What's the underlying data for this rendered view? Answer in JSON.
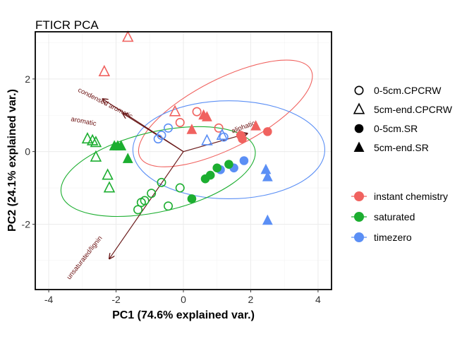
{
  "chart_data": {
    "type": "scatter",
    "title": "FTICR PCA",
    "xlabel": "PC1 (74.6% explained var.)",
    "ylabel": "PC2 (24.1% explained var.)",
    "xlim": [
      -4.4,
      4.4
    ],
    "ylim": [
      -3.8,
      3.3
    ],
    "xticks": [
      -4,
      -2,
      0,
      2,
      4
    ],
    "xtick_labels": [
      "-4",
      "-2",
      "0",
      "2",
      "4"
    ],
    "yticks": [
      -2,
      0,
      2
    ],
    "ytick_labels": [
      "-2",
      "0",
      "2"
    ],
    "grid": true,
    "legend_position": "right",
    "colors": {
      "instant chemistry": "#f0625f",
      "saturated": "#1cae30",
      "timezero": "#5b8ff5",
      "loadings": "#6a1a1a",
      "grid": "#ebebeb"
    },
    "shape_legend": [
      {
        "label": "0-5cm.CPCRW",
        "shape": "circle-open"
      },
      {
        "label": "5cm-end.CPCRW",
        "shape": "triangle-open"
      },
      {
        "label": "0-5cm.SR",
        "shape": "circle-filled"
      },
      {
        "label": "5cm-end.SR",
        "shape": "triangle-filled"
      }
    ],
    "color_legend": [
      {
        "label": "instant chemistry",
        "color": "#f0625f"
      },
      {
        "label": "saturated",
        "color": "#1cae30"
      },
      {
        "label": "timezero",
        "color": "#5b8ff5"
      }
    ],
    "loadings": [
      {
        "label": "condensed aromatic",
        "x": -2.4,
        "y": 1.45
      },
      {
        "label": "aromatic",
        "x": -1.8,
        "y": 1.05
      },
      {
        "label": "aliphatic",
        "x": 1.9,
        "y": 0.5
      },
      {
        "label": "unsaturated/lignin",
        "x": -2.2,
        "y": -2.95
      }
    ],
    "ellipses": [
      {
        "group": "instant chemistry",
        "cx": 1.25,
        "cy": 1.05,
        "rx": 2.85,
        "ry": 0.95,
        "angle": -27
      },
      {
        "group": "timezero",
        "cx": 1.35,
        "cy": 0.05,
        "rx": 2.85,
        "ry": 1.35,
        "angle": 0
      },
      {
        "group": "saturated",
        "cx": -0.75,
        "cy": -0.55,
        "rx": 2.95,
        "ry": 1.1,
        "angle": -13
      }
    ],
    "points": [
      {
        "x": -1.65,
        "y": 3.15,
        "group": "instant chemistry",
        "shape": "triangle-open"
      },
      {
        "x": -2.35,
        "y": 2.2,
        "group": "instant chemistry",
        "shape": "triangle-open"
      },
      {
        "x": -0.25,
        "y": 1.1,
        "group": "instant chemistry",
        "shape": "triangle-open"
      },
      {
        "x": -0.1,
        "y": 0.8,
        "group": "instant chemistry",
        "shape": "circle-open"
      },
      {
        "x": 0.4,
        "y": 1.1,
        "group": "instant chemistry",
        "shape": "circle-open"
      },
      {
        "x": 1.05,
        "y": 0.65,
        "group": "instant chemistry",
        "shape": "circle-open"
      },
      {
        "x": 0.6,
        "y": 1.0,
        "group": "instant chemistry",
        "shape": "triangle-filled"
      },
      {
        "x": 0.7,
        "y": 0.95,
        "group": "instant chemistry",
        "shape": "triangle-filled"
      },
      {
        "x": 0.25,
        "y": 0.6,
        "group": "instant chemistry",
        "shape": "triangle-filled"
      },
      {
        "x": 1.7,
        "y": 0.45,
        "group": "instant chemistry",
        "shape": "circle-filled"
      },
      {
        "x": 1.75,
        "y": 0.35,
        "group": "instant chemistry",
        "shape": "circle-filled"
      },
      {
        "x": 2.15,
        "y": 0.7,
        "group": "instant chemistry",
        "shape": "triangle-filled"
      },
      {
        "x": 2.5,
        "y": 0.55,
        "group": "instant chemistry",
        "shape": "circle-filled"
      },
      {
        "x": -0.45,
        "y": 0.65,
        "group": "timezero",
        "shape": "circle-open"
      },
      {
        "x": -0.65,
        "y": 0.45,
        "group": "timezero",
        "shape": "circle-open"
      },
      {
        "x": -0.75,
        "y": 0.35,
        "group": "timezero",
        "shape": "circle-open"
      },
      {
        "x": 0.7,
        "y": 0.3,
        "group": "timezero",
        "shape": "triangle-open"
      },
      {
        "x": 1.15,
        "y": 0.45,
        "group": "timezero",
        "shape": "triangle-open"
      },
      {
        "x": 1.2,
        "y": 0.4,
        "group": "timezero",
        "shape": "circle-open"
      },
      {
        "x": 1.1,
        "y": -0.5,
        "group": "timezero",
        "shape": "circle-filled"
      },
      {
        "x": 1.5,
        "y": -0.45,
        "group": "timezero",
        "shape": "circle-filled"
      },
      {
        "x": 1.8,
        "y": -0.25,
        "group": "timezero",
        "shape": "circle-filled"
      },
      {
        "x": 2.45,
        "y": -0.5,
        "group": "timezero",
        "shape": "triangle-filled"
      },
      {
        "x": 2.5,
        "y": -0.7,
        "group": "timezero",
        "shape": "triangle-filled"
      },
      {
        "x": 2.5,
        "y": -1.9,
        "group": "timezero",
        "shape": "triangle-filled"
      },
      {
        "x": -2.85,
        "y": 0.35,
        "group": "saturated",
        "shape": "triangle-open"
      },
      {
        "x": -2.7,
        "y": 0.3,
        "group": "saturated",
        "shape": "triangle-open"
      },
      {
        "x": -2.6,
        "y": 0.25,
        "group": "saturated",
        "shape": "triangle-open"
      },
      {
        "x": -2.6,
        "y": -0.15,
        "group": "saturated",
        "shape": "triangle-open"
      },
      {
        "x": -2.25,
        "y": -0.65,
        "group": "saturated",
        "shape": "triangle-open"
      },
      {
        "x": -2.2,
        "y": -1.0,
        "group": "saturated",
        "shape": "triangle-open"
      },
      {
        "x": -2.05,
        "y": 0.15,
        "group": "saturated",
        "shape": "triangle-filled"
      },
      {
        "x": -1.95,
        "y": 0.15,
        "group": "saturated",
        "shape": "triangle-filled"
      },
      {
        "x": -1.85,
        "y": 0.15,
        "group": "saturated",
        "shape": "triangle-filled"
      },
      {
        "x": -1.65,
        "y": -0.2,
        "group": "saturated",
        "shape": "triangle-filled"
      },
      {
        "x": -0.65,
        "y": -0.85,
        "group": "saturated",
        "shape": "circle-open"
      },
      {
        "x": -0.95,
        "y": -1.15,
        "group": "saturated",
        "shape": "circle-open"
      },
      {
        "x": -1.15,
        "y": -1.35,
        "group": "saturated",
        "shape": "circle-open"
      },
      {
        "x": -1.25,
        "y": -1.4,
        "group": "saturated",
        "shape": "circle-open"
      },
      {
        "x": -1.35,
        "y": -1.6,
        "group": "saturated",
        "shape": "circle-open"
      },
      {
        "x": -0.45,
        "y": -1.5,
        "group": "saturated",
        "shape": "circle-open"
      },
      {
        "x": -0.1,
        "y": -1.0,
        "group": "saturated",
        "shape": "circle-open"
      },
      {
        "x": 0.25,
        "y": -1.3,
        "group": "saturated",
        "shape": "circle-filled"
      },
      {
        "x": 0.65,
        "y": -0.75,
        "group": "saturated",
        "shape": "circle-filled"
      },
      {
        "x": 0.8,
        "y": -0.65,
        "group": "saturated",
        "shape": "circle-filled"
      },
      {
        "x": 1.0,
        "y": -0.45,
        "group": "saturated",
        "shape": "circle-filled"
      },
      {
        "x": 1.35,
        "y": -0.35,
        "group": "saturated",
        "shape": "circle-filled"
      }
    ]
  }
}
